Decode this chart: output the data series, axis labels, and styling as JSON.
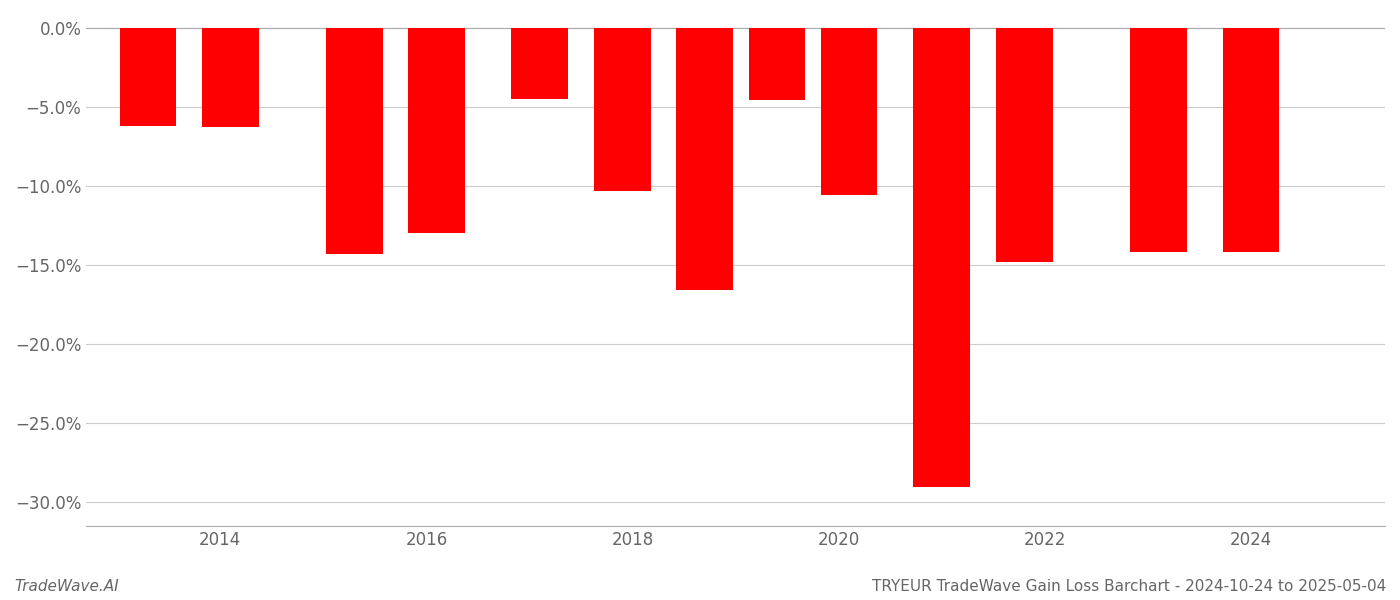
{
  "x_positions": [
    2013.3,
    2014.1,
    2015.3,
    2016.1,
    2017.1,
    2017.9,
    2018.7,
    2019.4,
    2020.1,
    2021.0,
    2021.8,
    2023.1,
    2024.0
  ],
  "values": [
    -6.2,
    -6.3,
    -14.3,
    -13.0,
    -4.5,
    -10.3,
    -16.6,
    -4.6,
    -10.6,
    -29.0,
    -14.8,
    -14.2,
    -14.2
  ],
  "bar_color": "#ff0000",
  "bar_width": 0.55,
  "ylim": [
    -31.5,
    0.8
  ],
  "yticks": [
    0.0,
    -5.0,
    -10.0,
    -15.0,
    -20.0,
    -25.0,
    -30.0
  ],
  "xticks": [
    2014,
    2016,
    2018,
    2020,
    2022,
    2024
  ],
  "xlim": [
    2012.7,
    2025.3
  ],
  "footnote_left": "TradeWave.AI",
  "footnote_right": "TRYEUR TradeWave Gain Loss Barchart - 2024-10-24 to 2025-05-04",
  "background_color": "#ffffff",
  "grid_color": "#cccccc",
  "text_color": "#666666"
}
